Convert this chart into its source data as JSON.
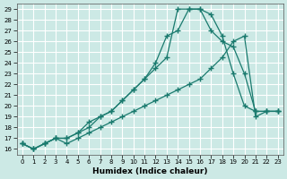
{
  "xlabel": "Humidex (Indice chaleur)",
  "xlim": [
    -0.5,
    23.5
  ],
  "ylim": [
    15.5,
    29.5
  ],
  "xticks": [
    0,
    1,
    2,
    3,
    4,
    5,
    6,
    7,
    8,
    9,
    10,
    11,
    12,
    13,
    14,
    15,
    16,
    17,
    18,
    19,
    20,
    21,
    22,
    23
  ],
  "yticks": [
    16,
    17,
    18,
    19,
    20,
    21,
    22,
    23,
    24,
    25,
    26,
    27,
    28,
    29
  ],
  "bg_color": "#cce9e5",
  "line_color": "#1a7a6e",
  "grid_color": "#ffffff",
  "line1_x": [
    0,
    1,
    2,
    3,
    4,
    5,
    6,
    7,
    8,
    9,
    10,
    11,
    12,
    13,
    14,
    15,
    16,
    17,
    18,
    19,
    20,
    21,
    22,
    23
  ],
  "line1_y": [
    16.5,
    16.0,
    16.5,
    17.0,
    17.0,
    17.5,
    18.5,
    19.0,
    19.5,
    20.5,
    21.5,
    22.5,
    23.5,
    24.5,
    29.0,
    29.0,
    29.0,
    28.5,
    26.5,
    23.0,
    20.0,
    19.5,
    19.5,
    19.5
  ],
  "line2_x": [
    0,
    1,
    2,
    3,
    4,
    5,
    6,
    7,
    8,
    9,
    10,
    11,
    12,
    13,
    14,
    15,
    16,
    17,
    18,
    19,
    20,
    21,
    22,
    23
  ],
  "line2_y": [
    16.5,
    16.0,
    16.5,
    17.0,
    17.0,
    17.5,
    18.0,
    19.0,
    19.5,
    20.5,
    21.5,
    22.5,
    24.0,
    26.5,
    27.0,
    29.0,
    29.0,
    27.0,
    26.0,
    25.5,
    23.0,
    19.5,
    19.5,
    19.5
  ],
  "line3_x": [
    0,
    1,
    2,
    3,
    4,
    5,
    6,
    7,
    8,
    9,
    10,
    11,
    12,
    13,
    14,
    15,
    16,
    17,
    18,
    19,
    20,
    21,
    22,
    23
  ],
  "line3_y": [
    16.5,
    16.0,
    16.5,
    17.0,
    16.5,
    17.0,
    17.5,
    18.0,
    18.5,
    19.0,
    19.5,
    20.0,
    20.5,
    21.0,
    21.5,
    22.0,
    22.5,
    23.5,
    24.5,
    26.0,
    26.5,
    19.0,
    19.5,
    19.5
  ]
}
